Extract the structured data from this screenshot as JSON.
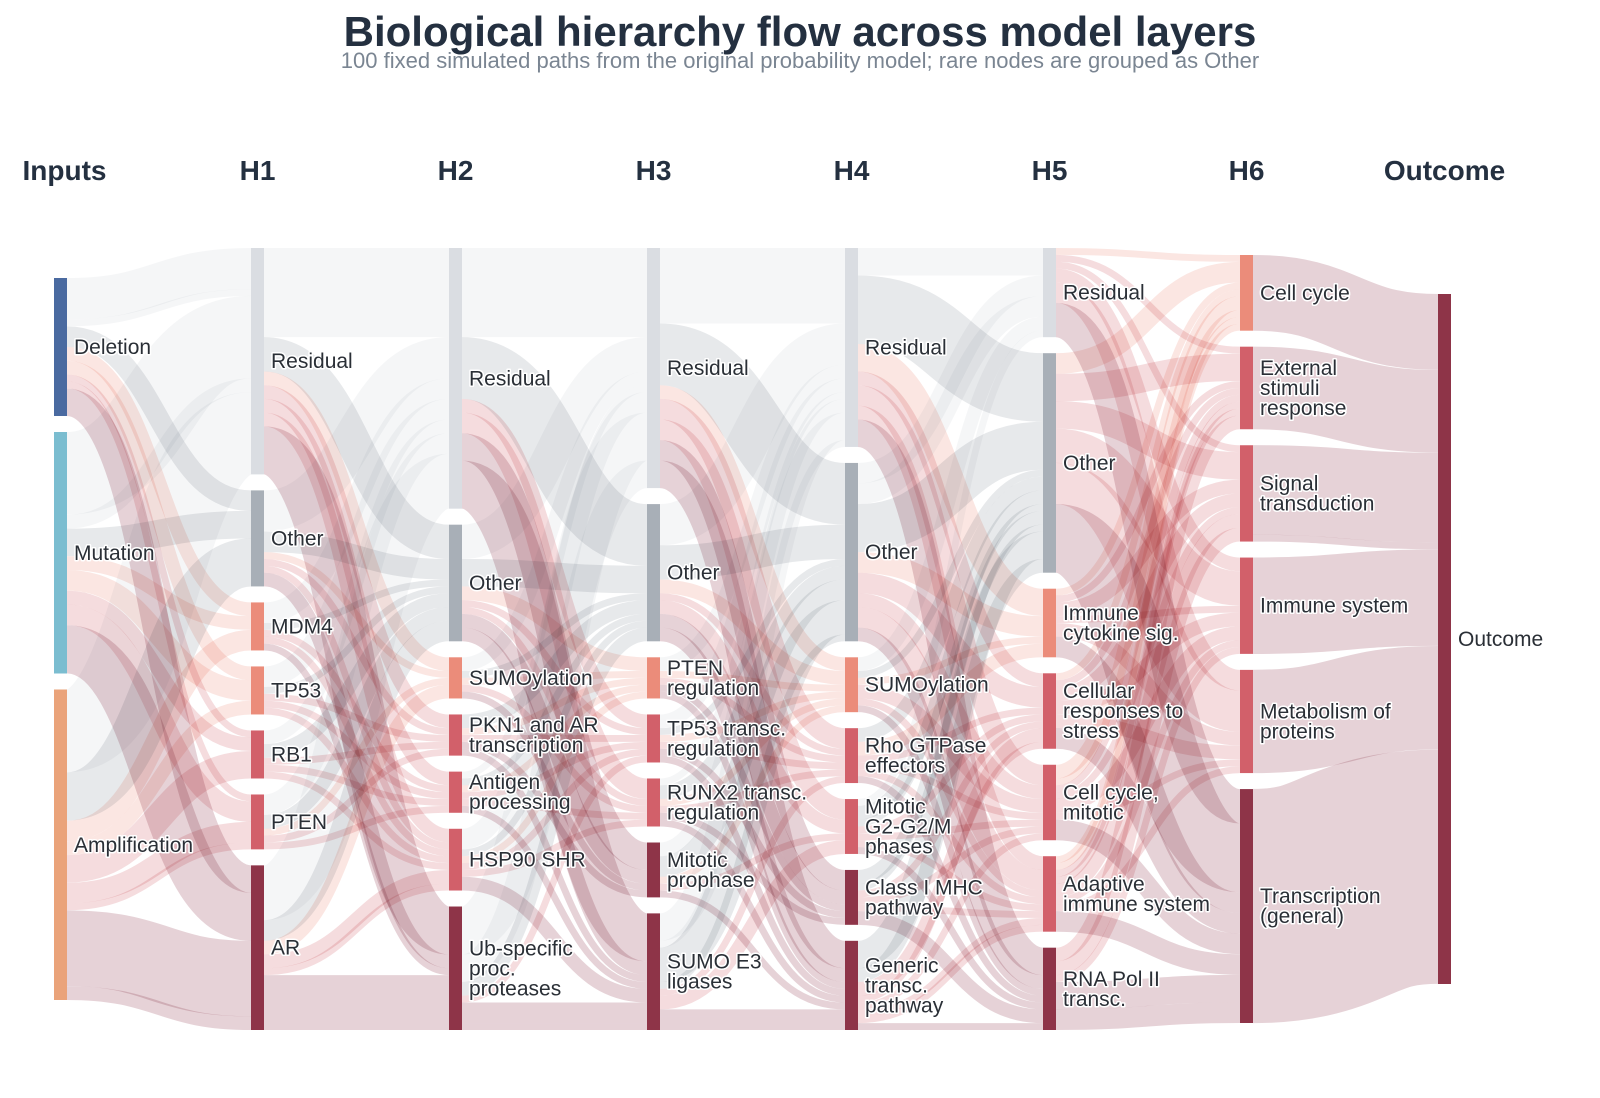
{
  "title": "Biological hierarchy flow across model layers",
  "subtitle": "100 fixed simulated paths from the original probability model; rare nodes are grouped as Other",
  "colors": {
    "deletion": "#4a6aa0",
    "mutation": "#7bbdd0",
    "amplification": "#eaa37a",
    "residual": "#dadde2",
    "other": "#a8afb7",
    "light": "#eb8c7a",
    "mid": "#d2606a",
    "dark": "#8e3448",
    "outcome": "#8e3448"
  },
  "chart_data": {
    "type": "sankey",
    "layers": [
      {
        "name": "Inputs",
        "nodes": [
          {
            "label": "Deletion",
            "value": 20,
            "color": "deletion"
          },
          {
            "label": "Mutation",
            "value": 35,
            "color": "mutation"
          },
          {
            "label": "Amplification",
            "value": 45,
            "color": "amplification"
          }
        ]
      },
      {
        "name": "H1",
        "nodes": [
          {
            "label": "Residual",
            "value": 33,
            "color": "residual"
          },
          {
            "label": "Other",
            "value": 14,
            "color": "other"
          },
          {
            "label": "MDM4",
            "value": 7,
            "color": "light"
          },
          {
            "label": "TP53",
            "value": 7,
            "color": "light"
          },
          {
            "label": "RB1",
            "value": 7,
            "color": "mid"
          },
          {
            "label": "PTEN",
            "value": 8,
            "color": "mid"
          },
          {
            "label": "AR",
            "value": 24,
            "color": "dark"
          }
        ]
      },
      {
        "name": "H2",
        "nodes": [
          {
            "label": "Residual",
            "value": 38,
            "color": "residual"
          },
          {
            "label": "Other",
            "value": 17,
            "color": "other"
          },
          {
            "label": "SUMOylation",
            "value": 6,
            "color": "light"
          },
          {
            "label": "PKN1 and AR\ntranscription",
            "value": 6,
            "color": "mid"
          },
          {
            "label": "Antigen\nprocessing",
            "value": 6,
            "color": "mid"
          },
          {
            "label": "HSP90 SHR",
            "value": 9,
            "color": "mid"
          },
          {
            "label": "Ub-specific\nproc.\nproteases",
            "value": 18,
            "color": "dark"
          }
        ]
      },
      {
        "name": "H3",
        "nodes": [
          {
            "label": "Residual",
            "value": 35,
            "color": "residual"
          },
          {
            "label": "Other",
            "value": 20,
            "color": "other"
          },
          {
            "label": "PTEN\nregulation",
            "value": 6,
            "color": "light"
          },
          {
            "label": "TP53 transc.\nregulation",
            "value": 7,
            "color": "mid"
          },
          {
            "label": "RUNX2 transc.\nregulation",
            "value": 7,
            "color": "mid"
          },
          {
            "label": "Mitotic\nprophase",
            "value": 8,
            "color": "dark"
          },
          {
            "label": "SUMO E3\nligases",
            "value": 17,
            "color": "dark"
          }
        ]
      },
      {
        "name": "H4",
        "nodes": [
          {
            "label": "Residual",
            "value": 29,
            "color": "residual"
          },
          {
            "label": "Other",
            "value": 26,
            "color": "other"
          },
          {
            "label": "SUMOylation",
            "value": 8,
            "color": "light"
          },
          {
            "label": "Rho GTPase\neffectors",
            "value": 8,
            "color": "mid"
          },
          {
            "label": "Mitotic\nG2-G2/M\nphases",
            "value": 8,
            "color": "mid"
          },
          {
            "label": "Class I MHC\npathway",
            "value": 8,
            "color": "dark"
          },
          {
            "label": "Generic\ntransc.\npathway",
            "value": 13,
            "color": "dark"
          }
        ]
      },
      {
        "name": "H5",
        "nodes": [
          {
            "label": "Residual",
            "value": 13,
            "color": "residual"
          },
          {
            "label": "Other",
            "value": 32,
            "color": "other"
          },
          {
            "label": "Immune\ncytokine sig.",
            "value": 10,
            "color": "light"
          },
          {
            "label": "Cellular\nresponses to\nstress",
            "value": 11,
            "color": "mid"
          },
          {
            "label": "Cell cycle,\nmitotic",
            "value": 11,
            "color": "mid"
          },
          {
            "label": "Adaptive\nimmune system",
            "value": 11,
            "color": "mid"
          },
          {
            "label": "RNA Pol II\ntransc.",
            "value": 12,
            "color": "dark"
          }
        ]
      },
      {
        "name": "H6",
        "nodes": [
          {
            "label": "Cell cycle",
            "value": 11,
            "color": "light"
          },
          {
            "label": "External\nstimuli\nresponse",
            "value": 12,
            "color": "mid"
          },
          {
            "label": "Signal\ntransduction",
            "value": 14,
            "color": "mid"
          },
          {
            "label": "Immune system",
            "value": 14,
            "color": "mid"
          },
          {
            "label": "Metabolism of\nproteins",
            "value": 15,
            "color": "mid"
          },
          {
            "label": "Transcription\n(general)",
            "value": 34,
            "color": "dark"
          }
        ]
      },
      {
        "name": "Outcome",
        "nodes": [
          {
            "label": "Outcome",
            "value": 100,
            "color": "outcome"
          }
        ]
      }
    ]
  }
}
